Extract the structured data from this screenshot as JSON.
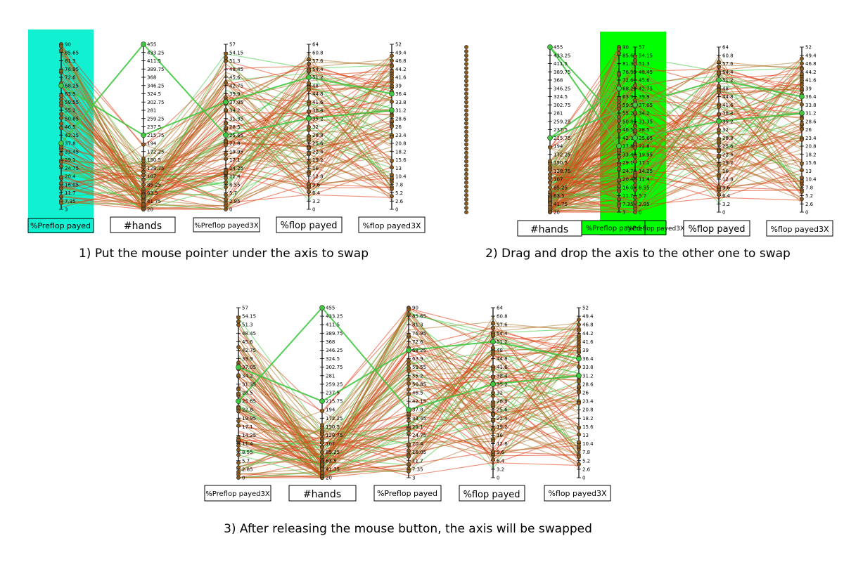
{
  "axes": {
    "preflop": {
      "label": "%Preflop payed",
      "ticks": [
        "90",
        "85.65",
        "81.3",
        "76.95",
        "72.6",
        "68.25",
        "63.9",
        "59.55",
        "55.2",
        "50.85",
        "46.5",
        "42.15",
        "37.8",
        "33.45",
        "29.1",
        "24.75",
        "20.4",
        "16.05",
        "11.7",
        "7.35",
        "3"
      ]
    },
    "hands": {
      "label": "#hands",
      "ticks": [
        "455",
        "433.25",
        "411.5",
        "389.75",
        "368",
        "346.25",
        "324.5",
        "302.75",
        "281",
        "259.25",
        "237.5",
        "215.75",
        "194",
        "172.25",
        "150.5",
        "128.75",
        "107",
        "85.25",
        "63.5",
        "41.75",
        "20"
      ]
    },
    "preflop3x": {
      "label": "%Preflop payed3X",
      "ticks": [
        "57",
        "54.15",
        "51.3",
        "48.45",
        "45.6",
        "42.75",
        "39.9",
        "37.05",
        "34.2",
        "31.35",
        "28.5",
        "25.65",
        "22.8",
        "19.95",
        "17.1",
        "14.25",
        "11.4",
        "8.55",
        "5.7",
        "2.85",
        "0"
      ]
    },
    "flop": {
      "label": "%flop payed",
      "ticks": [
        "64",
        "60.8",
        "57.6",
        "54.4",
        "51.2",
        "48",
        "44.8",
        "41.6",
        "38.4",
        "35.2",
        "32",
        "28.8",
        "25.6",
        "22.4",
        "19.2",
        "16",
        "12.8",
        "9.6",
        "6.4",
        "3.2",
        "0"
      ]
    },
    "flop3x": {
      "label": "%flop payed3X",
      "ticks": [
        "52",
        "49.4",
        "46.8",
        "44.2",
        "41.6",
        "39",
        "36.4",
        "33.8",
        "31.2",
        "28.6",
        "26",
        "23.4",
        "20.8",
        "18.2",
        "15.6",
        "13",
        "10.4",
        "7.8",
        "5.2",
        "2.6",
        "0"
      ]
    }
  },
  "captions": {
    "step1": "1) Put the mouse pointer under the axis to swap",
    "step2": "2) Drag and drop the axis to the other one to swap",
    "step3": "3) After releasing the mouse button, the axis will be swapped"
  },
  "colors": {
    "highlight_cyan": "#12f0d2",
    "highlight_green": "#00ff00",
    "line_red": "#e03a10",
    "line_brown": "#b07a30",
    "line_green": "#40c840"
  }
}
